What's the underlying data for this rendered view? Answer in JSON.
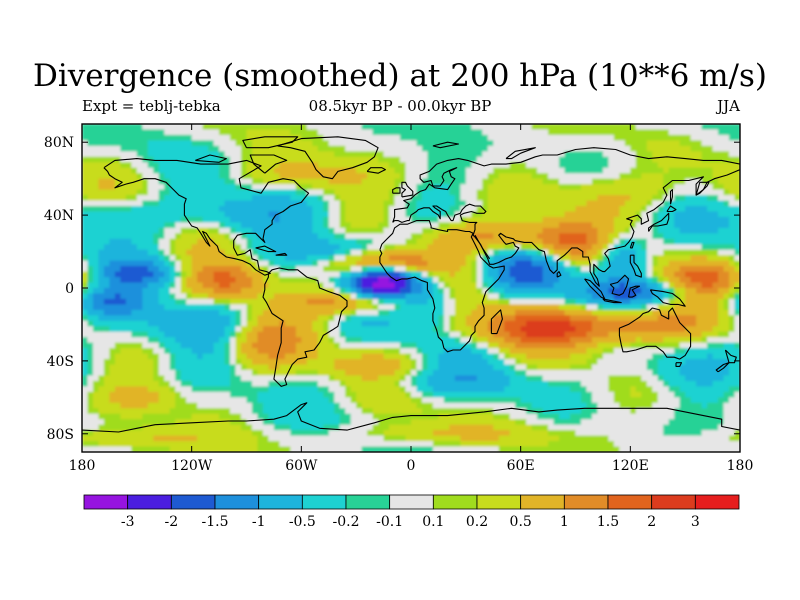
{
  "chart_data": {
    "type": "heatmap",
    "title": "Divergence (smoothed) at 200 hPa (10**6 m/s)",
    "left_subtitle": "Expt = teblj-tebka",
    "center_subtitle": "08.5kyr BP - 00.0kyr BP",
    "right_subtitle": "JJA",
    "x_ticks": [
      {
        "value": -180,
        "label": "180"
      },
      {
        "value": -120,
        "label": "120W"
      },
      {
        "value": -60,
        "label": "60W"
      },
      {
        "value": 0,
        "label": "0"
      },
      {
        "value": 60,
        "label": "60E"
      },
      {
        "value": 120,
        "label": "120E"
      },
      {
        "value": 180,
        "label": "180"
      }
    ],
    "y_ticks": [
      {
        "value": 80,
        "label": "80N"
      },
      {
        "value": 40,
        "label": "40N"
      },
      {
        "value": 0,
        "label": "0"
      },
      {
        "value": -40,
        "label": "40S"
      },
      {
        "value": -80,
        "label": "80S"
      }
    ],
    "xlim": [
      -180,
      180
    ],
    "ylim": [
      -90,
      90
    ],
    "colorbar": {
      "colors": [
        "#9614e0",
        "#4b1ee0",
        "#1e5ad2",
        "#1e90dc",
        "#1eb4dc",
        "#1ed2d2",
        "#28d296",
        "#e6e6e6",
        "#a0dc1e",
        "#c8dc1e",
        "#e1b428",
        "#e18c28",
        "#e1641e",
        "#dc3c1e",
        "#e61e1e"
      ],
      "labels": [
        "-3",
        "-2",
        "-1.5",
        "-1",
        "-0.5",
        "-0.2",
        "-0.1",
        "0.1",
        "0.2",
        "0.5",
        "1",
        "1.5",
        "2",
        "3"
      ]
    },
    "anomalies": [
      {
        "lon": -15,
        "lat": 3,
        "value": -3.2,
        "sigma_lon": 12,
        "sigma_lat": 6
      },
      {
        "lon": -15,
        "lat": 14,
        "value": 1.8,
        "sigma_lon": 20,
        "sigma_lat": 5
      },
      {
        "lon": -30,
        "lat": -8,
        "value": 1.5,
        "sigma_lon": 22,
        "sigma_lat": 5
      },
      {
        "lon": 10,
        "lat": -6,
        "value": -1.2,
        "sigma_lon": 12,
        "sigma_lat": 10
      },
      {
        "lon": -40,
        "lat": 20,
        "value": -1.0,
        "sigma_lon": 20,
        "sigma_lat": 6
      },
      {
        "lon": 45,
        "lat": 28,
        "value": 1.2,
        "sigma_lon": 25,
        "sigma_lat": 6
      },
      {
        "lon": 85,
        "lat": 25,
        "value": 1.3,
        "sigma_lon": 15,
        "sigma_lat": 8
      },
      {
        "lon": 62,
        "lat": 8,
        "value": -1.2,
        "sigma_lon": 15,
        "sigma_lat": 8
      },
      {
        "lon": 115,
        "lat": 18,
        "value": -1.4,
        "sigma_lon": 10,
        "sigma_lat": 10
      },
      {
        "lon": 125,
        "lat": -2,
        "value": -1.2,
        "sigma_lon": 25,
        "sigma_lat": 5
      },
      {
        "lon": 160,
        "lat": 5,
        "value": 1.3,
        "sigma_lon": 15,
        "sigma_lat": 7
      },
      {
        "lon": 125,
        "lat": -20,
        "value": 1.5,
        "sigma_lon": 25,
        "sigma_lat": 7
      },
      {
        "lon": 70,
        "lat": -22,
        "value": 1.5,
        "sigma_lon": 30,
        "sigma_lat": 7
      },
      {
        "lon": -100,
        "lat": 4,
        "value": 1.6,
        "sigma_lon": 14,
        "sigma_lat": 7
      },
      {
        "lon": -148,
        "lat": 8,
        "value": -1.2,
        "sigma_lon": 15,
        "sigma_lat": 5
      },
      {
        "lon": -165,
        "lat": -8,
        "value": -1.3,
        "sigma_lon": 15,
        "sigma_lat": 6
      },
      {
        "lon": -125,
        "lat": -20,
        "value": -0.8,
        "sigma_lon": 25,
        "sigma_lat": 8
      },
      {
        "lon": -95,
        "lat": 40,
        "value": -0.7,
        "sigma_lon": 30,
        "sigma_lat": 8
      },
      {
        "lon": -160,
        "lat": 40,
        "value": -0.6,
        "sigma_lon": 20,
        "sigma_lat": 8
      },
      {
        "lon": -80,
        "lat": -30,
        "value": 1.0,
        "sigma_lon": 15,
        "sigma_lat": 10
      },
      {
        "lon": -60,
        "lat": 62,
        "value": 0.6,
        "sigma_lon": 25,
        "sigma_lat": 6
      },
      {
        "lon": 120,
        "lat": 52,
        "value": 0.6,
        "sigma_lon": 30,
        "sigma_lat": 8
      },
      {
        "lon": 20,
        "lat": -52,
        "value": -0.6,
        "sigma_lon": 30,
        "sigma_lat": 6
      },
      {
        "lon": -20,
        "lat": -42,
        "value": 0.5,
        "sigma_lon": 20,
        "sigma_lat": 5
      },
      {
        "lon": 150,
        "lat": -45,
        "value": -0.5,
        "sigma_lon": 20,
        "sigma_lat": 8
      },
      {
        "lon": -150,
        "lat": -60,
        "value": 0.5,
        "sigma_lon": 15,
        "sigma_lat": 5
      },
      {
        "lon": 20,
        "lat": -80,
        "value": 0.5,
        "sigma_lon": 40,
        "sigma_lat": 4
      },
      {
        "lon": -150,
        "lat": -83,
        "value": 0.5,
        "sigma_lon": 30,
        "sigma_lat": 4
      }
    ]
  }
}
